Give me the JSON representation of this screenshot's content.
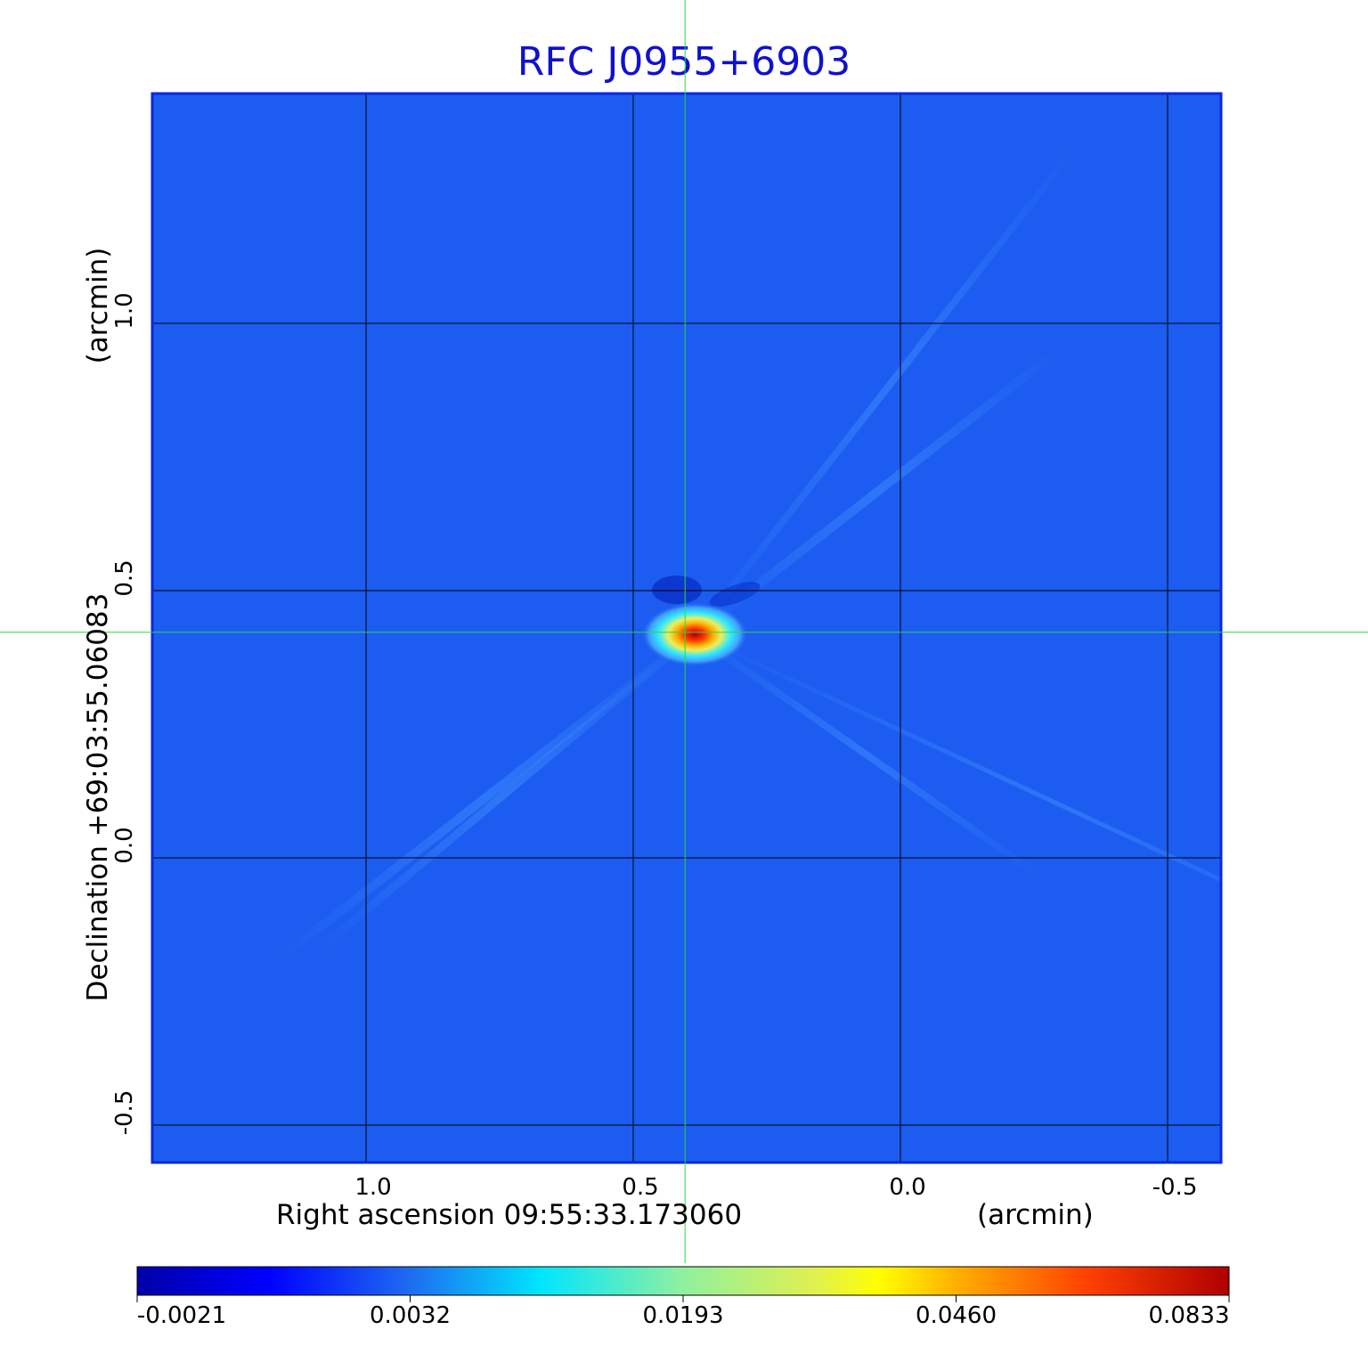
{
  "chart_data": {
    "type": "heatmap",
    "title": "RFC J0955+6903",
    "xlabel": "Right ascension  09:55:33.173060",
    "xunit": "(arcmin)",
    "ylabel": "Declination  +69:03:55.06083",
    "yunit": "(arcmin)",
    "xlim": [
      1.4,
      -0.6
    ],
    "ylim": [
      -0.57,
      1.43
    ],
    "x_ticks": [
      {
        "value": 1.0,
        "label": "1.0"
      },
      {
        "value": 0.5,
        "label": "0.5"
      },
      {
        "value": 0.0,
        "label": "0.0"
      },
      {
        "value": -0.5,
        "label": "-0.5"
      }
    ],
    "y_ticks": [
      {
        "value": 1.0,
        "label": "1.0"
      },
      {
        "value": 0.5,
        "label": "0.5"
      },
      {
        "value": 0.0,
        "label": "0.0"
      },
      {
        "value": -0.5,
        "label": "-0.5"
      }
    ],
    "grid": true,
    "crosshair": {
      "x": 0.403,
      "y": 0.422,
      "color": "#22dd44"
    },
    "source_peak": {
      "x": 0.385,
      "y": 0.418,
      "value": 0.0833
    },
    "colorbar": {
      "colormap": "jet",
      "ticks": [
        {
          "value": -0.0021,
          "label": "-0.0021"
        },
        {
          "value": 0.0032,
          "label": "0.0032"
        },
        {
          "value": 0.0193,
          "label": "0.0193"
        },
        {
          "value": 0.046,
          "label": "0.0460"
        },
        {
          "value": 0.0833,
          "label": "0.0833"
        }
      ]
    },
    "colors": {
      "background_field": "#1c5cf0",
      "title": "#1010d0",
      "grid": "#000000"
    }
  }
}
